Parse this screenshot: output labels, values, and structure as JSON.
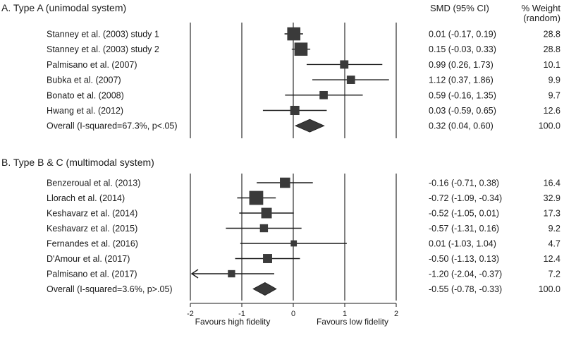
{
  "chart_data": {
    "type": "forest",
    "xlim": [
      -2,
      2
    ],
    "ticks": [
      "-2",
      "-1",
      "0",
      "1",
      "2"
    ],
    "col_effect_header": "SMD (95% CI)",
    "col_weight_header": [
      "% Weight",
      "(random)"
    ],
    "favours_left": "Favours high fidelity",
    "favours_right": "Favours low fidelity",
    "panels": [
      {
        "title": "A. Type A (unimodal system)",
        "studies": [
          {
            "label": "Stanney et al. (2003) study 1",
            "est": 0.01,
            "lo": -0.17,
            "hi": 0.19,
            "ci_text": "0.01 (-0.17, 0.19)",
            "weight": 28.8,
            "weight_text": "28.8"
          },
          {
            "label": "Stanney et al. (2003) study 2",
            "est": 0.15,
            "lo": -0.03,
            "hi": 0.33,
            "ci_text": "0.15 (-0.03, 0.33)",
            "weight": 28.8,
            "weight_text": "28.8"
          },
          {
            "label": "Palmisano et al. (2007)",
            "est": 0.99,
            "lo": 0.26,
            "hi": 1.73,
            "ci_text": "0.99 (0.26, 1.73)",
            "weight": 10.1,
            "weight_text": "10.1"
          },
          {
            "label": "Bubka et al. (2007)",
            "est": 1.12,
            "lo": 0.37,
            "hi": 1.86,
            "ci_text": "1.12 (0.37, 1.86)",
            "weight": 9.9,
            "weight_text": "9.9"
          },
          {
            "label": "Bonato et al. (2008)",
            "est": 0.59,
            "lo": -0.16,
            "hi": 1.35,
            "ci_text": "0.59 (-0.16, 1.35)",
            "weight": 9.7,
            "weight_text": "9.7"
          },
          {
            "label": "Hwang et al. (2012)",
            "est": 0.03,
            "lo": -0.59,
            "hi": 0.65,
            "ci_text": "0.03 (-0.59, 0.65)",
            "weight": 12.6,
            "weight_text": "12.6"
          }
        ],
        "overall": {
          "label": "Overall (I-squared=67.3%, p<.05)",
          "est": 0.32,
          "lo": 0.04,
          "hi": 0.6,
          "ci_text": "0.32 (0.04, 0.60)",
          "weight_text": "100.0"
        }
      },
      {
        "title": "B. Type B & C (multimodal system)",
        "studies": [
          {
            "label": "Benzeroual et al. (2013)",
            "est": -0.16,
            "lo": -0.71,
            "hi": 0.38,
            "ci_text": "-0.16 (-0.71, 0.38)",
            "weight": 16.4,
            "weight_text": "16.4"
          },
          {
            "label": "Llorach et al. (2014)",
            "est": -0.72,
            "lo": -1.09,
            "hi": -0.34,
            "ci_text": "-0.72 (-1.09, -0.34)",
            "weight": 32.9,
            "weight_text": "32.9"
          },
          {
            "label": "Keshavarz et al. (2014)",
            "est": -0.52,
            "lo": -1.05,
            "hi": 0.01,
            "ci_text": "-0.52 (-1.05, 0.01)",
            "weight": 17.3,
            "weight_text": "17.3"
          },
          {
            "label": "Keshavarz et al. (2015)",
            "est": -0.57,
            "lo": -1.31,
            "hi": 0.16,
            "ci_text": "-0.57 (-1.31, 0.16)",
            "weight": 9.2,
            "weight_text": "9.2"
          },
          {
            "label": "Fernandes et al. (2016)",
            "est": 0.01,
            "lo": -1.03,
            "hi": 1.04,
            "ci_text": "0.01 (-1.03, 1.04)",
            "weight": 4.7,
            "weight_text": "4.7"
          },
          {
            "label": "D'Amour et al. (2017)",
            "est": -0.5,
            "lo": -1.13,
            "hi": 0.13,
            "ci_text": "-0.50 (-1.13, 0.13)",
            "weight": 12.4,
            "weight_text": "12.4"
          },
          {
            "label": "Palmisano et al. (2017)",
            "est": -1.2,
            "lo": -2.04,
            "hi": -0.37,
            "ci_text": "-1.20 (-2.04, -0.37)",
            "weight": 7.2,
            "weight_text": "7.2",
            "arrow_left": true
          }
        ],
        "overall": {
          "label": "Overall (I-squared=3.6%, p>.05)",
          "est": -0.55,
          "lo": -0.78,
          "hi": -0.33,
          "ci_text": "-0.55 (-0.78, -0.33)",
          "weight_text": "100.0"
        }
      }
    ],
    "colors": {
      "ink": "#1a1a1a",
      "marker": "#3a3a3a"
    }
  }
}
